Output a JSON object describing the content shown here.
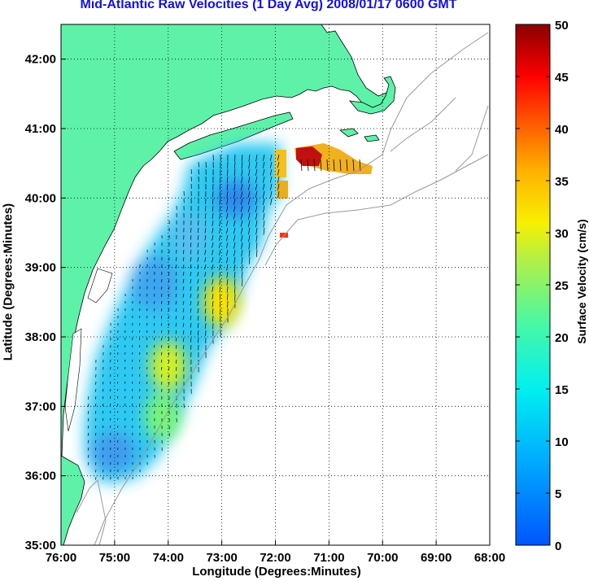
{
  "chart_data": {
    "type": "heatmap",
    "title": "Mid-Atlantic Raw Velocities (1 Day Avg) 2008/01/17 0600 GMT",
    "xlabel": "Longitude (Degrees:Minutes)",
    "ylabel": "Latitude (Degrees:Minutes)",
    "colorbar_label": "Surface Velocity (cm/s)",
    "x_ticks": [
      {
        "value": -76,
        "label": "76:00"
      },
      {
        "value": -75,
        "label": "75:00"
      },
      {
        "value": -74,
        "label": "74:00"
      },
      {
        "value": -73,
        "label": "73:00"
      },
      {
        "value": -72,
        "label": "72:00"
      },
      {
        "value": -71,
        "label": "71:00"
      },
      {
        "value": -70,
        "label": "70:00"
      },
      {
        "value": -69,
        "label": "69:00"
      },
      {
        "value": -68,
        "label": "68:00"
      }
    ],
    "y_ticks": [
      {
        "value": 35,
        "label": "35:00"
      },
      {
        "value": 36,
        "label": "36:00"
      },
      {
        "value": 37,
        "label": "37:00"
      },
      {
        "value": 38,
        "label": "38:00"
      },
      {
        "value": 39,
        "label": "39:00"
      },
      {
        "value": 40,
        "label": "40:00"
      },
      {
        "value": 41,
        "label": "41:00"
      },
      {
        "value": 42,
        "label": "42:00"
      }
    ],
    "xlim": [
      -76,
      -68
    ],
    "ylim": [
      35,
      42.5
    ],
    "grid": true,
    "colorbar": {
      "min": 0,
      "max": 50,
      "ticks": [
        0,
        5,
        10,
        15,
        20,
        25,
        30,
        35,
        40,
        45,
        50
      ],
      "colormap": "jet"
    },
    "hotspots": [
      {
        "name": "38:30N 73:00W",
        "lon": -73.0,
        "lat": 38.5,
        "velocity": 32
      },
      {
        "name": "37:35N 74:00W",
        "lon": -74.0,
        "lat": 37.58,
        "velocity": 29
      },
      {
        "name": "36:50N 74:05W",
        "lon": -74.1,
        "lat": 36.85,
        "velocity": 24
      },
      {
        "name": "40:40N 71:25W",
        "lon": -71.4,
        "lat": 40.65,
        "velocity": 45
      }
    ],
    "velocity_field_note_free": true
  },
  "colors": {
    "land": "#5ef2a8",
    "title": "#1010e0",
    "coast": "#888888"
  }
}
